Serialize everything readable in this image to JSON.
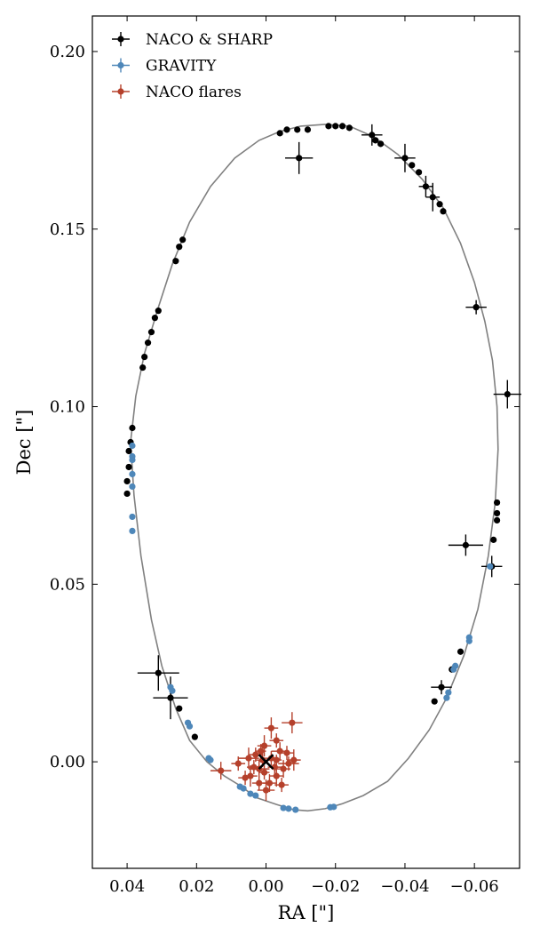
{
  "chart_data": {
    "type": "scatter",
    "xlabel": "RA [\"]",
    "ylabel": "Dec [\"]",
    "x_inverted": true,
    "xlim": [
      0.05,
      -0.073
    ],
    "ylim": [
      -0.03,
      0.21
    ],
    "xticks": [
      0.04,
      0.02,
      0.0,
      -0.02,
      -0.04,
      -0.06
    ],
    "xtick_labels": [
      "0.04",
      "0.02",
      "0.00",
      "−0.02",
      "−0.04",
      "−0.06"
    ],
    "yticks": [
      0.0,
      0.05,
      0.1,
      0.15,
      0.2
    ],
    "ytick_labels": [
      "0.00",
      "0.05",
      "0.10",
      "0.15",
      "0.20"
    ],
    "legend_position": "top-left",
    "orbit": {
      "points": [
        [
          0.039,
          0.09
        ],
        [
          0.038,
          0.075
        ],
        [
          0.036,
          0.058
        ],
        [
          0.033,
          0.04
        ],
        [
          0.03,
          0.027
        ],
        [
          0.026,
          0.015
        ],
        [
          0.022,
          0.006
        ],
        [
          0.017,
          0.0
        ],
        [
          0.012,
          -0.004
        ],
        [
          0.007,
          -0.007
        ],
        [
          0.003,
          -0.01
        ],
        [
          0.0,
          -0.011
        ],
        [
          -0.003,
          -0.012
        ],
        [
          -0.008,
          -0.0135
        ],
        [
          -0.012,
          -0.0138
        ],
        [
          -0.017,
          -0.0132
        ],
        [
          -0.022,
          -0.0118
        ],
        [
          -0.028,
          -0.0095
        ],
        [
          -0.035,
          -0.0055
        ],
        [
          -0.041,
          0.001
        ],
        [
          -0.047,
          0.009
        ],
        [
          -0.052,
          0.018
        ],
        [
          -0.057,
          0.03
        ],
        [
          -0.061,
          0.043
        ],
        [
          -0.064,
          0.058
        ],
        [
          -0.066,
          0.073
        ],
        [
          -0.0668,
          0.088
        ],
        [
          -0.0665,
          0.1
        ],
        [
          -0.0652,
          0.113
        ],
        [
          -0.063,
          0.124
        ],
        [
          -0.06,
          0.135
        ],
        [
          -0.056,
          0.146
        ],
        [
          -0.051,
          0.156
        ],
        [
          -0.045,
          0.164
        ],
        [
          -0.038,
          0.171
        ],
        [
          -0.031,
          0.176
        ],
        [
          -0.024,
          0.179
        ],
        [
          -0.017,
          0.1795
        ],
        [
          -0.01,
          0.179
        ],
        [
          -0.004,
          0.1775
        ],
        [
          0.002,
          0.175
        ],
        [
          0.009,
          0.17
        ],
        [
          0.016,
          0.162
        ],
        [
          0.022,
          0.152
        ],
        [
          0.027,
          0.14
        ],
        [
          0.031,
          0.128
        ],
        [
          0.035,
          0.115
        ],
        [
          0.0375,
          0.103
        ],
        [
          0.039,
          0.09
        ]
      ],
      "color": "#808080"
    },
    "center_marker": {
      "x": 0.0,
      "y": 0.0,
      "symbol": "x",
      "color": "#000000"
    },
    "series": [
      {
        "name": "NACO & SHARP",
        "color": "#000000",
        "points": [
          {
            "x": -0.0095,
            "y": 0.17,
            "ex": 0.004,
            "ey": 0.0045
          },
          {
            "x": -0.0305,
            "y": 0.1765,
            "ex": 0.003,
            "ey": 0.003
          },
          {
            "x": -0.0315,
            "y": 0.175,
            "ex": 0,
            "ey": 0
          },
          {
            "x": -0.033,
            "y": 0.174,
            "ex": 0,
            "ey": 0
          },
          {
            "x": -0.04,
            "y": 0.17,
            "ex": 0.003,
            "ey": 0.004
          },
          {
            "x": -0.042,
            "y": 0.168,
            "ex": 0,
            "ey": 0
          },
          {
            "x": -0.044,
            "y": 0.166,
            "ex": 0,
            "ey": 0
          },
          {
            "x": -0.046,
            "y": 0.162,
            "ex": 0.002,
            "ey": 0.003
          },
          {
            "x": -0.048,
            "y": 0.159,
            "ex": 0.002,
            "ey": 0.004
          },
          {
            "x": -0.05,
            "y": 0.157,
            "ex": 0,
            "ey": 0
          },
          {
            "x": -0.051,
            "y": 0.155,
            "ex": 0,
            "ey": 0
          },
          {
            "x": -0.0605,
            "y": 0.128,
            "ex": 0.003,
            "ey": 0.002
          },
          {
            "x": -0.0695,
            "y": 0.1035,
            "ex": 0.004,
            "ey": 0.004
          },
          {
            "x": -0.0665,
            "y": 0.073,
            "ex": 0,
            "ey": 0
          },
          {
            "x": -0.0665,
            "y": 0.07,
            "ex": 0,
            "ey": 0
          },
          {
            "x": -0.0665,
            "y": 0.068,
            "ex": 0,
            "ey": 0
          },
          {
            "x": -0.0655,
            "y": 0.0625,
            "ex": 0,
            "ey": 0
          },
          {
            "x": -0.0575,
            "y": 0.061,
            "ex": 0.005,
            "ey": 0.003
          },
          {
            "x": -0.065,
            "y": 0.055,
            "ex": 0.003,
            "ey": 0.003
          },
          {
            "x": -0.056,
            "y": 0.031,
            "ex": 0,
            "ey": 0
          },
          {
            "x": -0.0535,
            "y": 0.026,
            "ex": 0,
            "ey": 0
          },
          {
            "x": -0.0505,
            "y": 0.021,
            "ex": 0.003,
            "ey": 0.002
          },
          {
            "x": -0.0485,
            "y": 0.017,
            "ex": 0,
            "ey": 0
          },
          {
            "x": -0.004,
            "y": 0.177,
            "ex": 0,
            "ey": 0
          },
          {
            "x": -0.006,
            "y": 0.178,
            "ex": 0,
            "ey": 0
          },
          {
            "x": -0.009,
            "y": 0.178,
            "ex": 0,
            "ey": 0
          },
          {
            "x": -0.012,
            "y": 0.178,
            "ex": 0,
            "ey": 0
          },
          {
            "x": -0.018,
            "y": 0.179,
            "ex": 0,
            "ey": 0
          },
          {
            "x": -0.02,
            "y": 0.179,
            "ex": 0,
            "ey": 0
          },
          {
            "x": -0.022,
            "y": 0.179,
            "ex": 0,
            "ey": 0
          },
          {
            "x": -0.024,
            "y": 0.1785,
            "ex": 0,
            "ey": 0
          },
          {
            "x": 0.024,
            "y": 0.147,
            "ex": 0,
            "ey": 0
          },
          {
            "x": 0.025,
            "y": 0.145,
            "ex": 0,
            "ey": 0
          },
          {
            "x": 0.026,
            "y": 0.141,
            "ex": 0,
            "ey": 0
          },
          {
            "x": 0.031,
            "y": 0.127,
            "ex": 0,
            "ey": 0
          },
          {
            "x": 0.032,
            "y": 0.125,
            "ex": 0,
            "ey": 0
          },
          {
            "x": 0.033,
            "y": 0.121,
            "ex": 0,
            "ey": 0
          },
          {
            "x": 0.034,
            "y": 0.118,
            "ex": 0,
            "ey": 0
          },
          {
            "x": 0.035,
            "y": 0.114,
            "ex": 0,
            "ey": 0
          },
          {
            "x": 0.0355,
            "y": 0.111,
            "ex": 0,
            "ey": 0
          },
          {
            "x": 0.0385,
            "y": 0.094,
            "ex": 0,
            "ey": 0
          },
          {
            "x": 0.039,
            "y": 0.09,
            "ex": 0,
            "ey": 0
          },
          {
            "x": 0.0395,
            "y": 0.0875,
            "ex": 0,
            "ey": 0
          },
          {
            "x": 0.0395,
            "y": 0.083,
            "ex": 0,
            "ey": 0
          },
          {
            "x": 0.04,
            "y": 0.079,
            "ex": 0,
            "ey": 0
          },
          {
            "x": 0.04,
            "y": 0.0755,
            "ex": 0,
            "ey": 0
          },
          {
            "x": 0.031,
            "y": 0.025,
            "ex": 0.006,
            "ey": 0.005
          },
          {
            "x": 0.0275,
            "y": 0.018,
            "ex": 0.005,
            "ey": 0.006
          },
          {
            "x": 0.025,
            "y": 0.015,
            "ex": 0,
            "ey": 0
          },
          {
            "x": 0.0205,
            "y": 0.007,
            "ex": 0,
            "ey": 0
          }
        ]
      },
      {
        "name": "GRAVITY",
        "color": "#4e87b9",
        "points": [
          {
            "x": 0.0385,
            "y": 0.089,
            "ex": 0,
            "ey": 0
          },
          {
            "x": 0.0385,
            "y": 0.086,
            "ex": 0,
            "ey": 0
          },
          {
            "x": 0.0385,
            "y": 0.085,
            "ex": 0,
            "ey": 0
          },
          {
            "x": 0.0385,
            "y": 0.081,
            "ex": 0,
            "ey": 0
          },
          {
            "x": 0.0385,
            "y": 0.0775,
            "ex": 0,
            "ey": 0
          },
          {
            "x": 0.0385,
            "y": 0.069,
            "ex": 0,
            "ey": 0
          },
          {
            "x": 0.0385,
            "y": 0.065,
            "ex": 0,
            "ey": 0
          },
          {
            "x": 0.0275,
            "y": 0.021,
            "ex": 0,
            "ey": 0
          },
          {
            "x": 0.027,
            "y": 0.02,
            "ex": 0,
            "ey": 0
          },
          {
            "x": 0.0225,
            "y": 0.011,
            "ex": 0,
            "ey": 0
          },
          {
            "x": 0.022,
            "y": 0.01,
            "ex": 0,
            "ey": 0
          },
          {
            "x": 0.0165,
            "y": 0.001,
            "ex": 0,
            "ey": 0
          },
          {
            "x": 0.016,
            "y": 0.0005,
            "ex": 0,
            "ey": 0
          },
          {
            "x": 0.0075,
            "y": -0.007,
            "ex": 0,
            "ey": 0
          },
          {
            "x": 0.0065,
            "y": -0.0075,
            "ex": 0,
            "ey": 0
          },
          {
            "x": 0.0045,
            "y": -0.009,
            "ex": 0,
            "ey": 0
          },
          {
            "x": 0.003,
            "y": -0.0095,
            "ex": 0,
            "ey": 0
          },
          {
            "x": -0.005,
            "y": -0.013,
            "ex": 0,
            "ey": 0
          },
          {
            "x": -0.0065,
            "y": -0.0132,
            "ex": 0,
            "ey": 0
          },
          {
            "x": -0.0085,
            "y": -0.0135,
            "ex": 0,
            "ey": 0
          },
          {
            "x": -0.0185,
            "y": -0.0128,
            "ex": 0,
            "ey": 0
          },
          {
            "x": -0.0195,
            "y": -0.0127,
            "ex": 0,
            "ey": 0
          },
          {
            "x": -0.052,
            "y": 0.018,
            "ex": 0,
            "ey": 0
          },
          {
            "x": -0.0525,
            "y": 0.0195,
            "ex": 0,
            "ey": 0
          },
          {
            "x": -0.054,
            "y": 0.026,
            "ex": 0,
            "ey": 0
          },
          {
            "x": -0.0545,
            "y": 0.027,
            "ex": 0,
            "ey": 0
          },
          {
            "x": -0.0585,
            "y": 0.035,
            "ex": 0,
            "ey": 0
          },
          {
            "x": -0.0585,
            "y": 0.034,
            "ex": 0,
            "ey": 0
          },
          {
            "x": -0.0645,
            "y": 0.055,
            "ex": 0,
            "ey": 0
          }
        ]
      },
      {
        "name": "NACO flares",
        "color": "#b5402b",
        "points": [
          {
            "x": 0.013,
            "y": -0.0025,
            "ex": 0.003,
            "ey": 0.0025
          },
          {
            "x": 0.008,
            "y": -0.0005,
            "ex": 0.002,
            "ey": 0.002
          },
          {
            "x": 0.005,
            "y": 0.001,
            "ex": 0.003,
            "ey": 0.003
          },
          {
            "x": 0.003,
            "y": 0.002,
            "ex": 0.002,
            "ey": 0.002
          },
          {
            "x": 0.0045,
            "y": -0.004,
            "ex": 0.002,
            "ey": 0.003
          },
          {
            "x": 0.002,
            "y": -0.002,
            "ex": 0.003,
            "ey": 0.0025
          },
          {
            "x": 0.0005,
            "y": 0.0045,
            "ex": 0.002,
            "ey": 0.003
          },
          {
            "x": -0.0015,
            "y": 0.0095,
            "ex": 0.002,
            "ey": 0.003
          },
          {
            "x": -0.003,
            "y": 0.006,
            "ex": 0.002,
            "ey": 0.002
          },
          {
            "x": -0.004,
            "y": 0.003,
            "ex": 0.0025,
            "ey": 0.0025
          },
          {
            "x": -0.006,
            "y": 0.0025,
            "ex": 0.002,
            "ey": 0.002
          },
          {
            "x": -0.0075,
            "y": 0.011,
            "ex": 0.003,
            "ey": 0.003
          },
          {
            "x": -0.0065,
            "y": -0.0005,
            "ex": 0.003,
            "ey": 0.002
          },
          {
            "x": -0.005,
            "y": -0.002,
            "ex": 0.002,
            "ey": 0.0025
          },
          {
            "x": -0.003,
            "y": -0.004,
            "ex": 0.002,
            "ey": 0.003
          },
          {
            "x": -0.001,
            "y": -0.006,
            "ex": 0.002,
            "ey": 0.0025
          },
          {
            "x": 0.0,
            "y": -0.008,
            "ex": 0.0025,
            "ey": 0.003
          },
          {
            "x": 0.002,
            "y": -0.006,
            "ex": 0.002,
            "ey": 0.002
          },
          {
            "x": -0.0025,
            "y": -0.0015,
            "ex": 0.002,
            "ey": 0.002
          },
          {
            "x": -0.0015,
            "y": 0.001,
            "ex": 0.002,
            "ey": 0.002
          },
          {
            "x": 0.001,
            "y": 0.0005,
            "ex": 0.002,
            "ey": 0.002
          },
          {
            "x": 0.0035,
            "y": -0.0015,
            "ex": 0.002,
            "ey": 0.002
          },
          {
            "x": 0.006,
            "y": -0.0045,
            "ex": 0.002,
            "ey": 0.002
          },
          {
            "x": -0.008,
            "y": 0.0005,
            "ex": 0.002,
            "ey": 0.003
          },
          {
            "x": -0.0045,
            "y": -0.0065,
            "ex": 0.002,
            "ey": 0.002
          },
          {
            "x": 0.0015,
            "y": 0.003,
            "ex": 0.0015,
            "ey": 0.002
          },
          {
            "x": -0.003,
            "y": 0.0005,
            "ex": 0.0015,
            "ey": 0.0015
          },
          {
            "x": 0.0005,
            "y": -0.003,
            "ex": 0.0015,
            "ey": 0.002
          }
        ]
      }
    ]
  }
}
